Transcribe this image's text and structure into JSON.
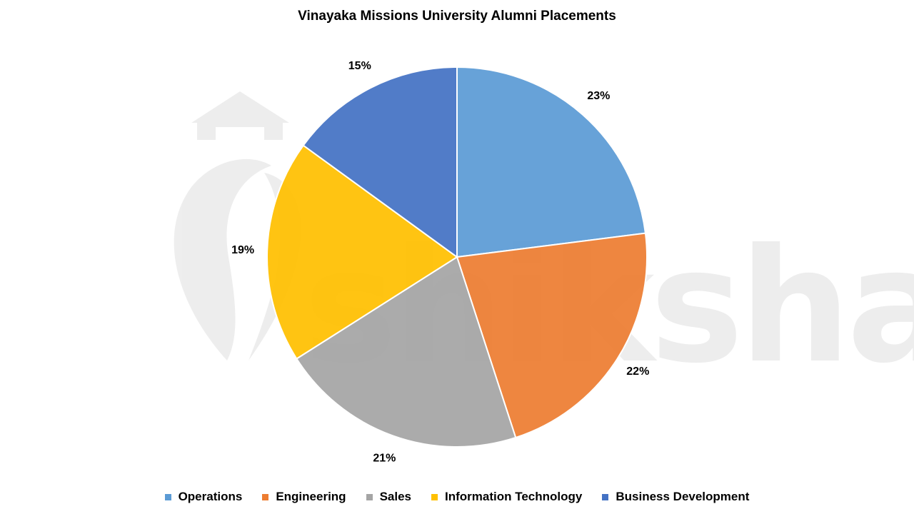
{
  "chart_data": {
    "type": "pie",
    "title": "Vinayaka Missions University Alumni Placements",
    "categories": [
      "Operations",
      "Engineering",
      "Sales",
      "Information Technology",
      "Business Development"
    ],
    "values": [
      23,
      22,
      21,
      19,
      15
    ],
    "labels": [
      "23%",
      "22%",
      "21%",
      "19%",
      "15%"
    ],
    "unit": "%",
    "start_angle_deg": 0,
    "direction": "clockwise",
    "legend_placement": "bottom",
    "colors": [
      "#5b9bd5",
      "#ed7d31",
      "#a5a5a5",
      "#ffc000",
      "#4472c4"
    ]
  },
  "watermark": {
    "text": "shiksha",
    "color": "#ececec"
  }
}
